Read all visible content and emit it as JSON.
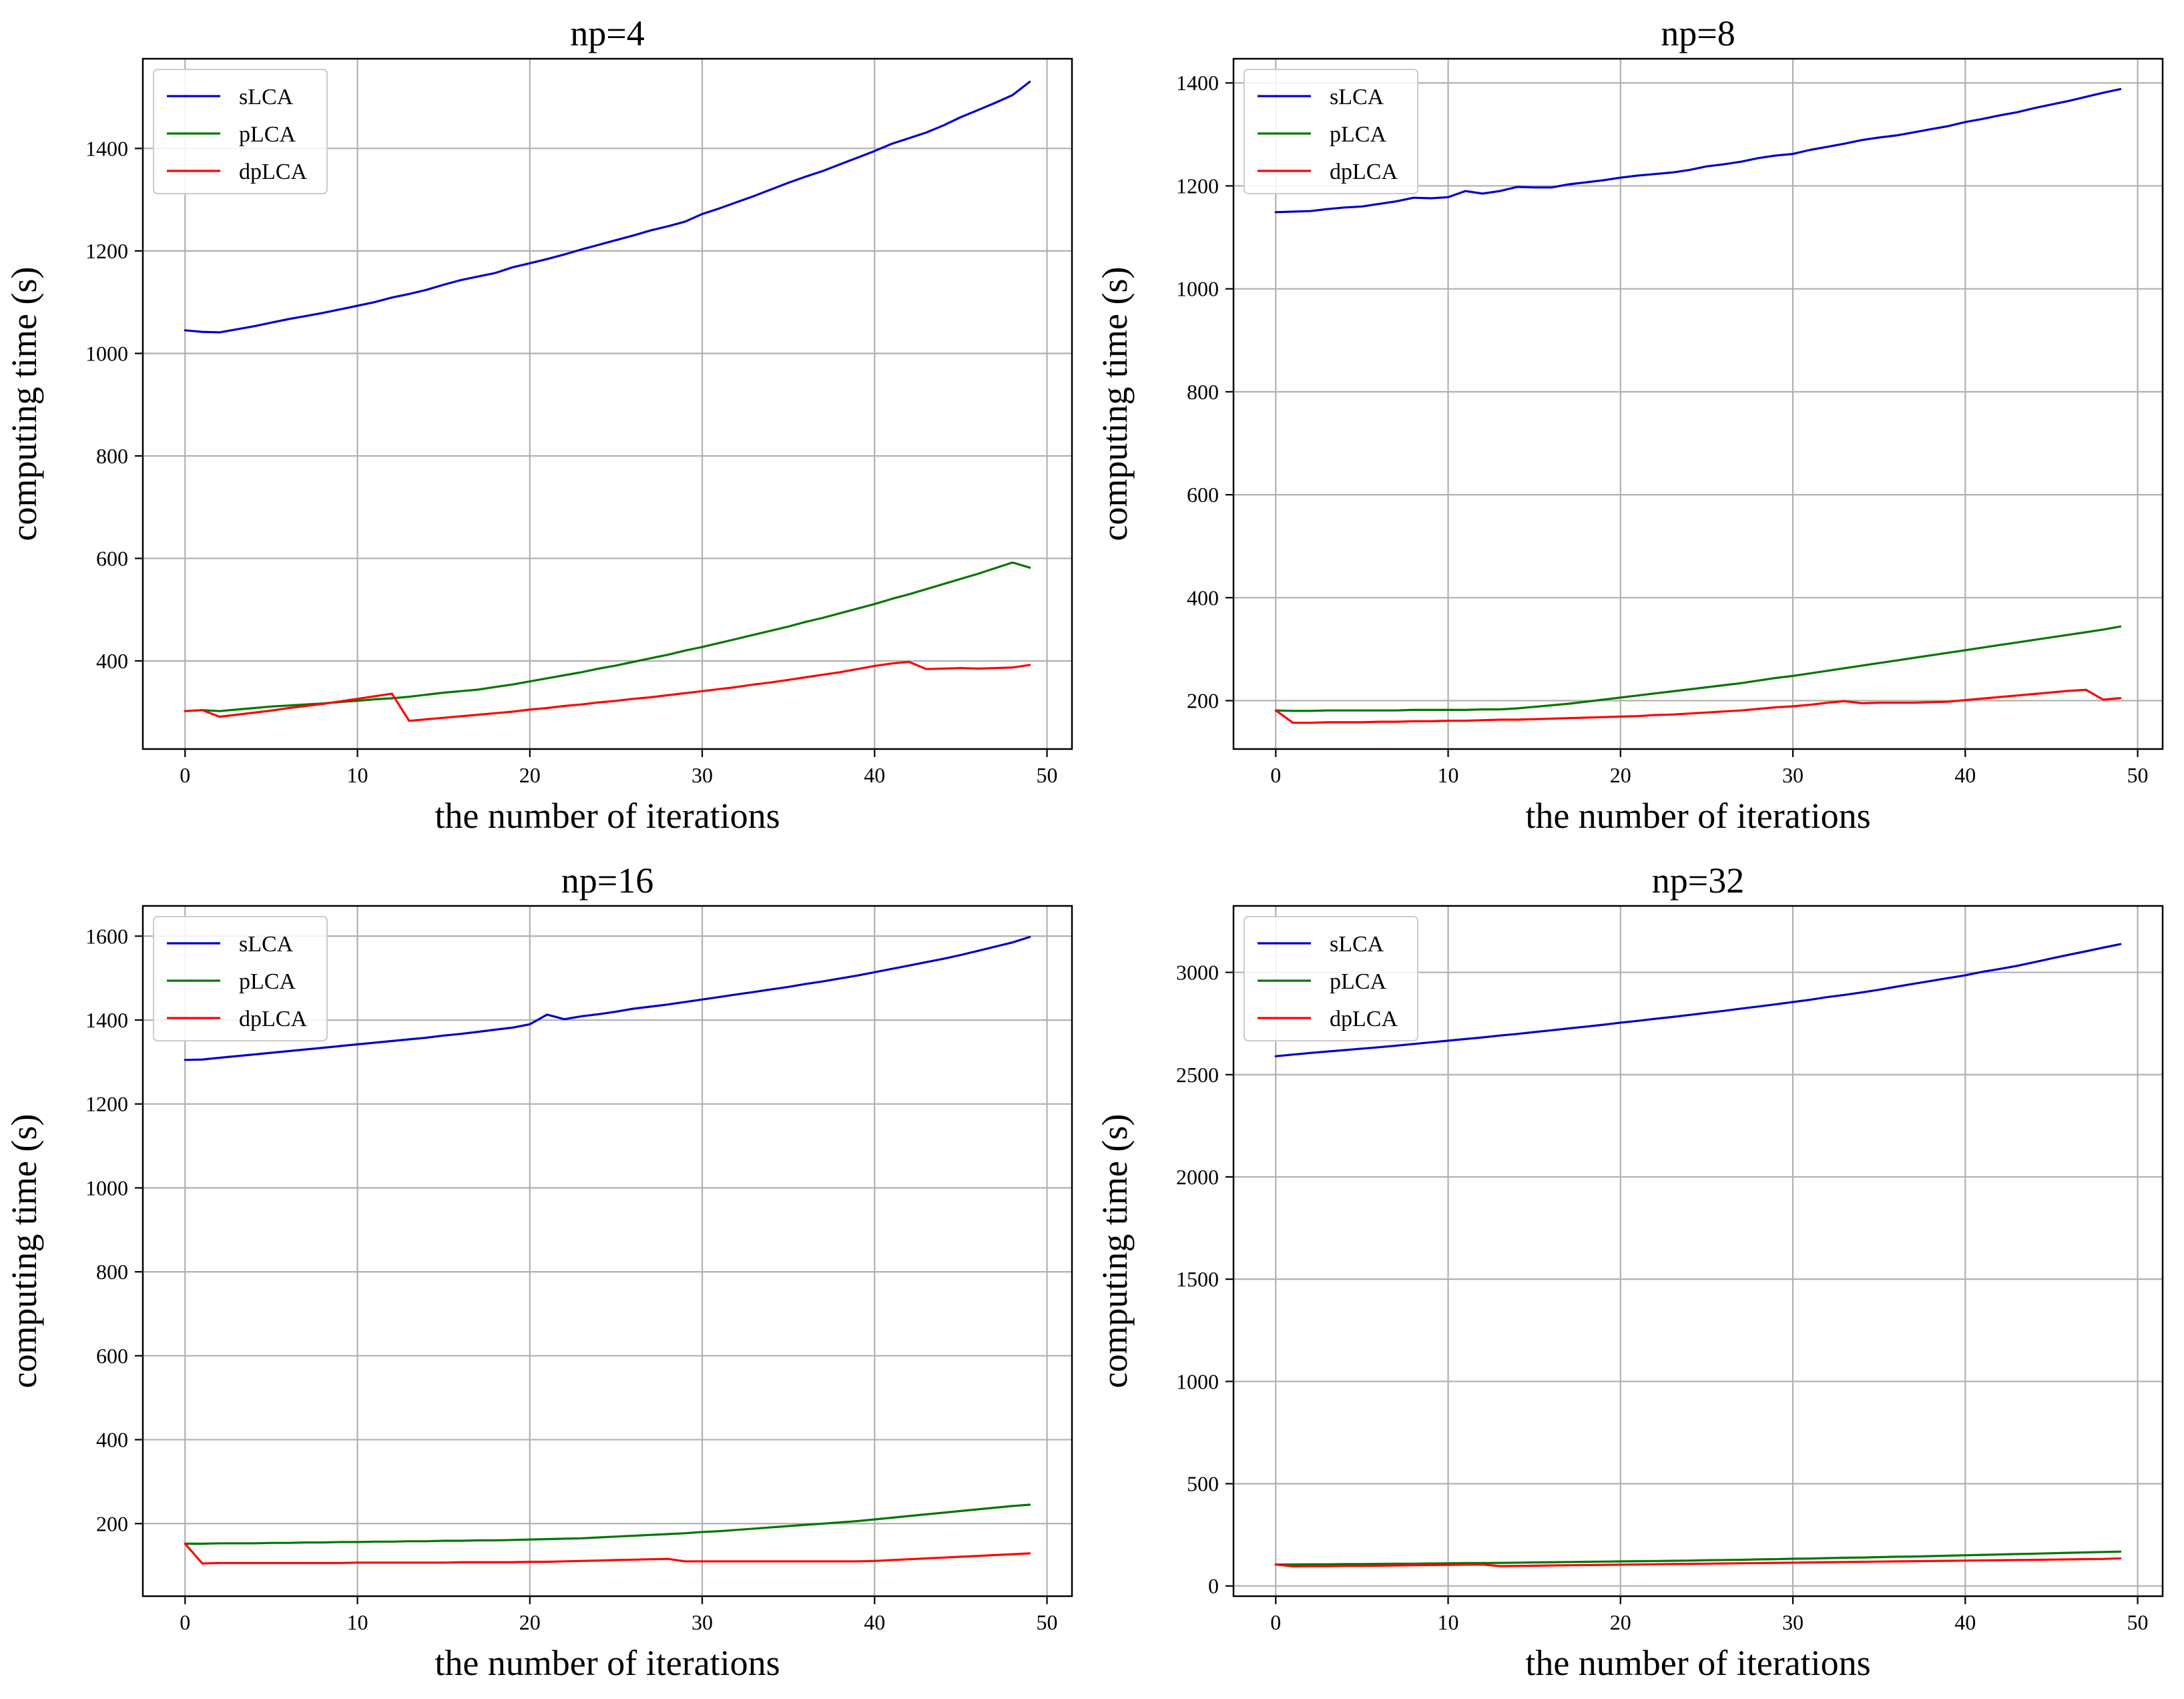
{
  "figure_title": "",
  "chart_data": [
    {
      "type": "line",
      "title": "np=4",
      "xlabel": "the number of iterations",
      "ylabel": "computing time (s)",
      "xlim": [
        -2.45,
        51.45
      ],
      "ylim": [
        228,
        1575
      ],
      "xticks": [
        0,
        10,
        20,
        30,
        40,
        50
      ],
      "yticks": [
        400,
        600,
        800,
        1000,
        1200,
        1400
      ],
      "grid": true,
      "legend_position": "top-left",
      "x": [
        0,
        1,
        2,
        3,
        4,
        5,
        6,
        7,
        8,
        9,
        10,
        11,
        12,
        13,
        14,
        15,
        16,
        17,
        18,
        19,
        20,
        21,
        22,
        23,
        24,
        25,
        26,
        27,
        28,
        29,
        30,
        31,
        32,
        33,
        34,
        35,
        36,
        37,
        38,
        39,
        40,
        41,
        42,
        43,
        44,
        45,
        46,
        47,
        48,
        49
      ],
      "series": [
        {
          "name": "sLCA",
          "color": "#0000cc",
          "values": [
            1045,
            1042,
            1041,
            1047,
            1053,
            1060,
            1067,
            1073,
            1079,
            1086,
            1093,
            1100,
            1109,
            1116,
            1124,
            1134,
            1143,
            1150,
            1157,
            1168,
            1176,
            1184,
            1193,
            1203,
            1212,
            1221,
            1230,
            1240,
            1248,
            1257,
            1272,
            1283,
            1295,
            1307,
            1320,
            1333,
            1345,
            1356,
            1369,
            1382,
            1395,
            1409,
            1420,
            1431,
            1445,
            1461,
            1475,
            1489,
            1504,
            1530
          ]
        },
        {
          "name": "pLCA",
          "color": "#007700",
          "values": [
            302,
            304,
            302,
            305,
            308,
            311,
            313,
            315,
            317,
            320,
            322,
            325,
            327,
            330,
            334,
            338,
            341,
            344,
            349,
            354,
            360,
            366,
            372,
            378,
            385,
            391,
            398,
            405,
            412,
            420,
            427,
            435,
            443,
            451,
            459,
            467,
            476,
            484,
            493,
            502,
            511,
            521,
            530,
            540,
            550,
            560,
            570,
            581,
            592,
            582
          ]
        },
        {
          "name": "dpLCA",
          "color": "#ff0000",
          "values": [
            302,
            304,
            291,
            295,
            299,
            303,
            308,
            312,
            316,
            321,
            326,
            331,
            336,
            283,
            286,
            289,
            292,
            295,
            298,
            301,
            305,
            308,
            312,
            315,
            319,
            322,
            326,
            329,
            333,
            337,
            341,
            345,
            349,
            354,
            358,
            363,
            368,
            373,
            378,
            384,
            390,
            395,
            398,
            384,
            385,
            386,
            385,
            386,
            387,
            392
          ]
        }
      ]
    },
    {
      "type": "line",
      "title": "np=8",
      "xlabel": "the number of iterations",
      "ylabel": "computing time (s)",
      "xlim": [
        -2.45,
        51.45
      ],
      "ylim": [
        106,
        1447
      ],
      "xticks": [
        0,
        10,
        20,
        30,
        40,
        50
      ],
      "yticks": [
        200,
        400,
        600,
        800,
        1000,
        1200,
        1400
      ],
      "grid": true,
      "legend_position": "top-left",
      "x": [
        0,
        1,
        2,
        3,
        4,
        5,
        6,
        7,
        8,
        9,
        10,
        11,
        12,
        13,
        14,
        15,
        16,
        17,
        18,
        19,
        20,
        21,
        22,
        23,
        24,
        25,
        26,
        27,
        28,
        29,
        30,
        31,
        32,
        33,
        34,
        35,
        36,
        37,
        38,
        39,
        40,
        41,
        42,
        43,
        44,
        45,
        46,
        47,
        48,
        49
      ],
      "series": [
        {
          "name": "sLCA",
          "color": "#0000cc",
          "values": [
            1149,
            1150,
            1151,
            1155,
            1158,
            1160,
            1165,
            1170,
            1177,
            1176,
            1178,
            1190,
            1185,
            1190,
            1198,
            1197,
            1197,
            1203,
            1207,
            1211,
            1216,
            1220,
            1223,
            1226,
            1231,
            1238,
            1242,
            1247,
            1254,
            1259,
            1262,
            1270,
            1276,
            1282,
            1289,
            1294,
            1298,
            1304,
            1310,
            1316,
            1324,
            1330,
            1337,
            1343,
            1351,
            1358,
            1365,
            1373,
            1381,
            1388
          ]
        },
        {
          "name": "pLCA",
          "color": "#007700",
          "values": [
            181,
            180,
            180,
            181,
            181,
            181,
            181,
            181,
            182,
            182,
            182,
            182,
            183,
            183,
            185,
            188,
            191,
            194,
            198,
            202,
            206,
            210,
            214,
            218,
            222,
            226,
            230,
            234,
            239,
            244,
            248,
            253,
            258,
            263,
            268,
            273,
            278,
            283,
            288,
            293,
            298,
            303,
            308,
            313,
            318,
            323,
            328,
            333,
            338,
            344
          ]
        },
        {
          "name": "dpLCA",
          "color": "#ff0000",
          "values": [
            181,
            157,
            157,
            158,
            158,
            158,
            159,
            159,
            160,
            160,
            161,
            161,
            162,
            163,
            163,
            164,
            165,
            166,
            167,
            168,
            169,
            170,
            172,
            173,
            175,
            177,
            179,
            181,
            184,
            187,
            189,
            192,
            196,
            199,
            195,
            196,
            196,
            196,
            197,
            198,
            201,
            204,
            207,
            210,
            213,
            216,
            219,
            221,
            202,
            205
          ]
        }
      ]
    },
    {
      "type": "line",
      "title": "np=16",
      "xlabel": "the number of iterations",
      "ylabel": "computing time (s)",
      "xlim": [
        -2.45,
        51.45
      ],
      "ylim": [
        27,
        1672
      ],
      "xticks": [
        0,
        10,
        20,
        30,
        40,
        50
      ],
      "yticks": [
        200,
        400,
        600,
        800,
        1000,
        1200,
        1400,
        1600
      ],
      "grid": true,
      "legend_position": "top-left",
      "x": [
        0,
        1,
        2,
        3,
        4,
        5,
        6,
        7,
        8,
        9,
        10,
        11,
        12,
        13,
        14,
        15,
        16,
        17,
        18,
        19,
        20,
        21,
        22,
        23,
        24,
        25,
        26,
        27,
        28,
        29,
        30,
        31,
        32,
        33,
        34,
        35,
        36,
        37,
        38,
        39,
        40,
        41,
        42,
        43,
        44,
        45,
        46,
        47,
        48,
        49
      ],
      "series": [
        {
          "name": "sLCA",
          "color": "#0000cc",
          "values": [
            1305,
            1306,
            1310,
            1314,
            1318,
            1322,
            1326,
            1330,
            1334,
            1338,
            1342,
            1346,
            1350,
            1354,
            1358,
            1363,
            1367,
            1372,
            1377,
            1382,
            1390,
            1413,
            1402,
            1409,
            1414,
            1420,
            1427,
            1432,
            1437,
            1443,
            1449,
            1455,
            1461,
            1467,
            1473,
            1479,
            1486,
            1492,
            1499,
            1506,
            1514,
            1522,
            1530,
            1538,
            1546,
            1555,
            1565,
            1575,
            1585,
            1598
          ]
        },
        {
          "name": "pLCA",
          "color": "#007700",
          "values": [
            152,
            152,
            153,
            153,
            153,
            154,
            154,
            155,
            155,
            156,
            156,
            157,
            157,
            158,
            158,
            159,
            159,
            160,
            160,
            161,
            162,
            163,
            164,
            165,
            167,
            169,
            171,
            173,
            175,
            177,
            180,
            182,
            185,
            188,
            191,
            194,
            197,
            200,
            203,
            206,
            210,
            214,
            218,
            222,
            226,
            230,
            234,
            238,
            242,
            245
          ]
        },
        {
          "name": "dpLCA",
          "color": "#ff0000",
          "values": [
            152,
            105,
            106,
            106,
            106,
            106,
            106,
            106,
            106,
            106,
            107,
            107,
            107,
            107,
            107,
            107,
            108,
            108,
            108,
            108,
            109,
            109,
            110,
            111,
            112,
            113,
            114,
            115,
            116,
            110,
            110,
            110,
            110,
            110,
            110,
            110,
            110,
            110,
            110,
            110,
            111,
            113,
            115,
            117,
            119,
            121,
            123,
            125,
            127,
            129
          ]
        }
      ]
    },
    {
      "type": "line",
      "title": "np=32",
      "xlabel": "the number of iterations",
      "ylabel": "computing time (s)",
      "xlim": [
        -2.45,
        51.45
      ],
      "ylim": [
        -50,
        3325
      ],
      "xticks": [
        0,
        10,
        20,
        30,
        40,
        50
      ],
      "yticks": [
        0,
        500,
        1000,
        1500,
        2000,
        2500,
        3000
      ],
      "grid": true,
      "legend_position": "top-left",
      "x": [
        0,
        1,
        2,
        3,
        4,
        5,
        6,
        7,
        8,
        9,
        10,
        11,
        12,
        13,
        14,
        15,
        16,
        17,
        18,
        19,
        20,
        21,
        22,
        23,
        24,
        25,
        26,
        27,
        28,
        29,
        30,
        31,
        32,
        33,
        34,
        35,
        36,
        37,
        38,
        39,
        40,
        41,
        42,
        43,
        44,
        45,
        46,
        47,
        48,
        49
      ],
      "series": [
        {
          "name": "sLCA",
          "color": "#0000cc",
          "values": [
            2590,
            2598,
            2606,
            2613,
            2620,
            2627,
            2634,
            2642,
            2650,
            2658,
            2666,
            2674,
            2682,
            2691,
            2699,
            2708,
            2717,
            2726,
            2735,
            2744,
            2754,
            2763,
            2773,
            2782,
            2792,
            2802,
            2812,
            2823,
            2833,
            2844,
            2855,
            2866,
            2879,
            2890,
            2902,
            2915,
            2930,
            2944,
            2958,
            2972,
            2986,
            3003,
            3017,
            3032,
            3050,
            3068,
            3086,
            3103,
            3121,
            3138
          ]
        },
        {
          "name": "pLCA",
          "color": "#007700",
          "values": [
            105,
            105,
            106,
            106,
            107,
            107,
            108,
            109,
            109,
            110,
            111,
            112,
            112,
            113,
            114,
            115,
            116,
            117,
            118,
            119,
            120,
            121,
            122,
            123,
            124,
            126,
            127,
            128,
            130,
            131,
            133,
            134,
            136,
            138,
            139,
            141,
            143,
            144,
            146,
            148,
            150,
            152,
            154,
            156,
            158,
            160,
            162,
            164,
            166,
            168
          ]
        },
        {
          "name": "dpLCA",
          "color": "#ff0000",
          "values": [
            105,
            96,
            97,
            97,
            98,
            98,
            99,
            100,
            101,
            102,
            103,
            104,
            105,
            97,
            98,
            99,
            100,
            101,
            102,
            103,
            104,
            105,
            106,
            107,
            108,
            109,
            110,
            111,
            112,
            113,
            114,
            115,
            116,
            117,
            118,
            119,
            120,
            121,
            122,
            123,
            124,
            125,
            126,
            127,
            128,
            129,
            130,
            131,
            132,
            135
          ]
        }
      ]
    }
  ]
}
